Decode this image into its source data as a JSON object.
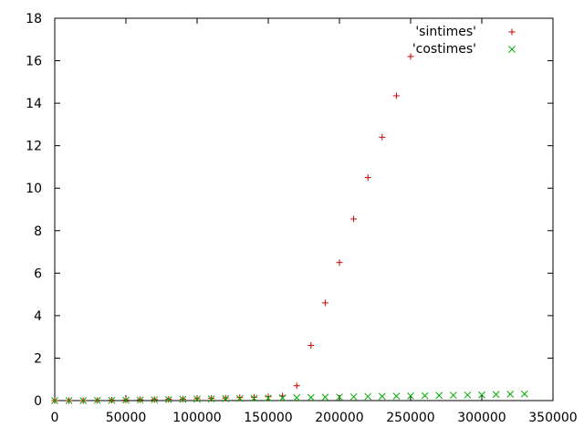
{
  "chart_data": {
    "type": "scatter",
    "title": "",
    "xlabel": "",
    "ylabel": "",
    "xlim": [
      0,
      350000
    ],
    "ylim": [
      0,
      18
    ],
    "xticks": [
      0,
      50000,
      100000,
      150000,
      200000,
      250000,
      300000,
      350000
    ],
    "yticks": [
      0,
      2,
      4,
      6,
      8,
      10,
      12,
      14,
      16,
      18
    ],
    "grid": false,
    "legend_position": "top-right",
    "series": [
      {
        "name": "'sintimes'",
        "marker": "plus",
        "color": "#cc0000",
        "points": [
          [
            0,
            0.0
          ],
          [
            10000,
            0.0
          ],
          [
            20000,
            0.0
          ],
          [
            30000,
            0.01
          ],
          [
            40000,
            0.02
          ],
          [
            50000,
            0.03
          ],
          [
            60000,
            0.04
          ],
          [
            70000,
            0.05
          ],
          [
            80000,
            0.06
          ],
          [
            90000,
            0.07
          ],
          [
            100000,
            0.09
          ],
          [
            110000,
            0.1
          ],
          [
            120000,
            0.12
          ],
          [
            130000,
            0.14
          ],
          [
            140000,
            0.16
          ],
          [
            150000,
            0.19
          ],
          [
            160000,
            0.22
          ],
          [
            170000,
            0.7
          ],
          [
            180000,
            2.6
          ],
          [
            190000,
            4.6
          ],
          [
            200000,
            6.5
          ],
          [
            210000,
            8.55
          ],
          [
            220000,
            10.5
          ],
          [
            230000,
            12.4
          ],
          [
            240000,
            14.35
          ],
          [
            250000,
            16.2
          ]
        ]
      },
      {
        "name": "'costimes'",
        "marker": "cross",
        "color": "#00aa00",
        "points": [
          [
            0,
            0.0
          ],
          [
            10000,
            0.0
          ],
          [
            20000,
            0.0
          ],
          [
            30000,
            0.01
          ],
          [
            40000,
            0.01
          ],
          [
            50000,
            0.02
          ],
          [
            60000,
            0.03
          ],
          [
            70000,
            0.04
          ],
          [
            80000,
            0.05
          ],
          [
            90000,
            0.06
          ],
          [
            100000,
            0.07
          ],
          [
            110000,
            0.08
          ],
          [
            120000,
            0.09
          ],
          [
            130000,
            0.1
          ],
          [
            140000,
            0.11
          ],
          [
            150000,
            0.12
          ],
          [
            160000,
            0.13
          ],
          [
            170000,
            0.14
          ],
          [
            180000,
            0.15
          ],
          [
            190000,
            0.16
          ],
          [
            200000,
            0.17
          ],
          [
            210000,
            0.18
          ],
          [
            220000,
            0.19
          ],
          [
            230000,
            0.2
          ],
          [
            240000,
            0.21
          ],
          [
            250000,
            0.22
          ],
          [
            260000,
            0.23
          ],
          [
            270000,
            0.24
          ],
          [
            280000,
            0.25
          ],
          [
            290000,
            0.26
          ],
          [
            300000,
            0.27
          ],
          [
            310000,
            0.29
          ],
          [
            320000,
            0.3
          ],
          [
            330000,
            0.31
          ]
        ]
      }
    ]
  }
}
